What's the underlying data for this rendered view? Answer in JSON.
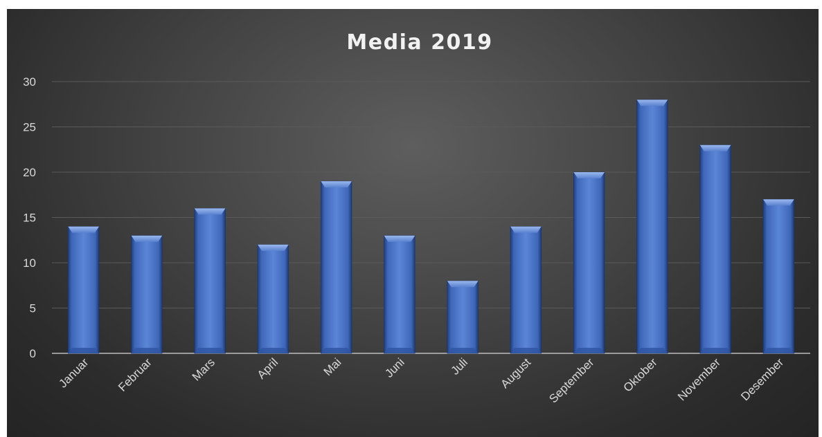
{
  "chart_data": {
    "type": "bar",
    "title": "Media 2019",
    "xlabel": "",
    "ylabel": "",
    "categories": [
      "Januar",
      "Februar",
      "Mars",
      "April",
      "Mai",
      "Juni",
      "Juli",
      "August",
      "September",
      "Oktober",
      "November",
      "Desember"
    ],
    "values": [
      14,
      13,
      16,
      12,
      19,
      13,
      8,
      14,
      20,
      28,
      23,
      17
    ],
    "ylim": [
      0,
      30
    ],
    "yticks": [
      0,
      5,
      10,
      15,
      20,
      25,
      30
    ],
    "grid": true,
    "legend": "none",
    "bar_color": "#4472c4",
    "background_color": "#3a3a3a"
  }
}
